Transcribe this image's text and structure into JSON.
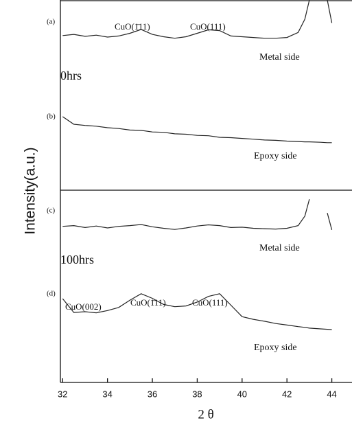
{
  "chart_data": {
    "type": "line",
    "ylabel": "Intensity(a.u.)",
    "xlabel": "2 θ",
    "xlim": [
      31.9,
      44.9
    ],
    "xticks": [
      32,
      34,
      36,
      38,
      40,
      42,
      44
    ],
    "ylim": [
      0,
      100
    ],
    "x": [
      32,
      32.5,
      33,
      33.5,
      34,
      34.5,
      35,
      35.5,
      36,
      36.5,
      37,
      37.5,
      38,
      38.5,
      39,
      39.5,
      40,
      40.5,
      41,
      41.5,
      42,
      42.5,
      42.8,
      43,
      43.5,
      43.8,
      44
    ],
    "series": [
      {
        "color": "#222222",
        "values": [
          90.7,
          91.0,
          90.5,
          90.8,
          90.3,
          90.6,
          91.3,
          92.3,
          91.0,
          90.4,
          90.0,
          90.4,
          91.3,
          92.2,
          92.0,
          90.6,
          90.4,
          90.2,
          90.0,
          90.0,
          90.2,
          91.5,
          95,
          100,
          null,
          100,
          94
        ]
      },
      {
        "color": "#222222",
        "values": [
          69.5,
          67.5,
          67.2,
          67.0,
          66.6,
          66.4,
          66.0,
          65.9,
          65.5,
          65.4,
          65.0,
          64.9,
          64.6,
          64.5,
          64.1,
          64.0,
          63.8,
          63.6,
          63.4,
          63.3,
          63.1,
          63.0,
          62.9,
          62.9,
          62.8,
          62.7,
          62.7
        ]
      },
      {
        "color": "#222222",
        "values": [
          40.8,
          41.0,
          40.5,
          40.9,
          40.4,
          40.8,
          41.0,
          41.3,
          40.7,
          40.3,
          40.0,
          40.4,
          40.9,
          41.2,
          41.0,
          40.5,
          40.6,
          40.3,
          40.2,
          40.1,
          40.3,
          41.0,
          43.5,
          47.9,
          null,
          44.3,
          39.9
        ]
      },
      {
        "color": "#222222",
        "values": [
          21.9,
          18.3,
          18.5,
          18.2,
          18.8,
          19.6,
          21.5,
          23.2,
          22.0,
          20.4,
          19.8,
          20.0,
          21.0,
          22.5,
          23.2,
          20.2,
          17.2,
          16.5,
          16.0,
          15.4,
          15.0,
          14.6,
          14.4,
          14.2,
          14.0,
          13.9,
          13.8
        ]
      }
    ],
    "annotations": [
      "(a)",
      "CuO(1̄11)",
      "CuO(111)",
      "Metal side",
      "0hrs",
      "(b)",
      "Epoxy side",
      "(c)",
      "Metal side",
      "100hrs",
      "(d)",
      "CuO(002)",
      "CuO(1̄11)",
      "CuO(111)",
      "Epoxy side"
    ]
  }
}
